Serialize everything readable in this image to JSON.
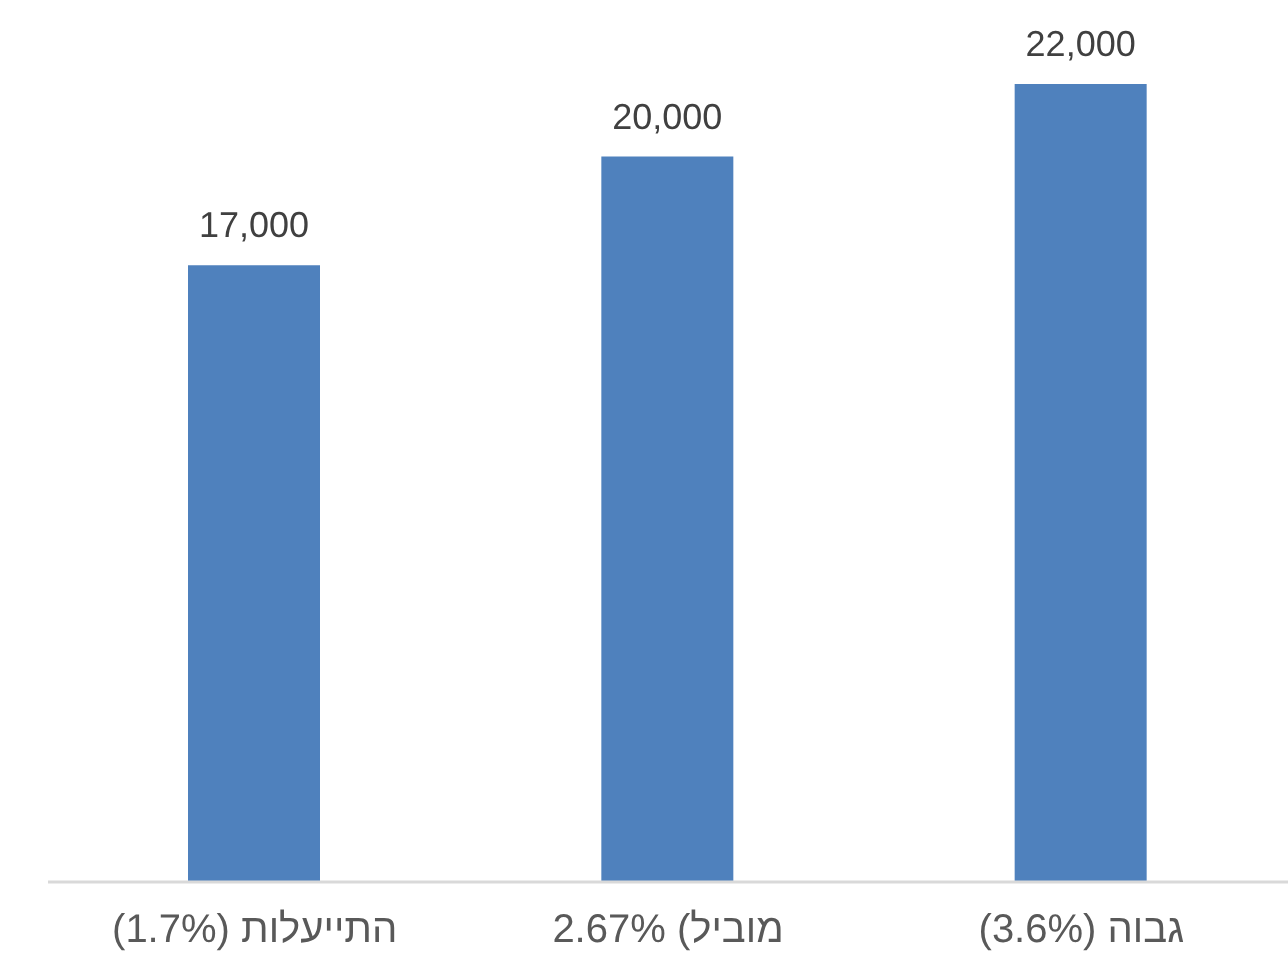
{
  "chart_data": {
    "type": "bar",
    "categories": [
      "התייעלות (1.7%)",
      "מוביל) 2.67%",
      "גבוה (3.6%)"
    ],
    "values": [
      17000,
      20000,
      22000
    ],
    "color": "#4f81bd",
    "value_labels": [
      "17,000",
      "20,000",
      "22,000"
    ]
  }
}
